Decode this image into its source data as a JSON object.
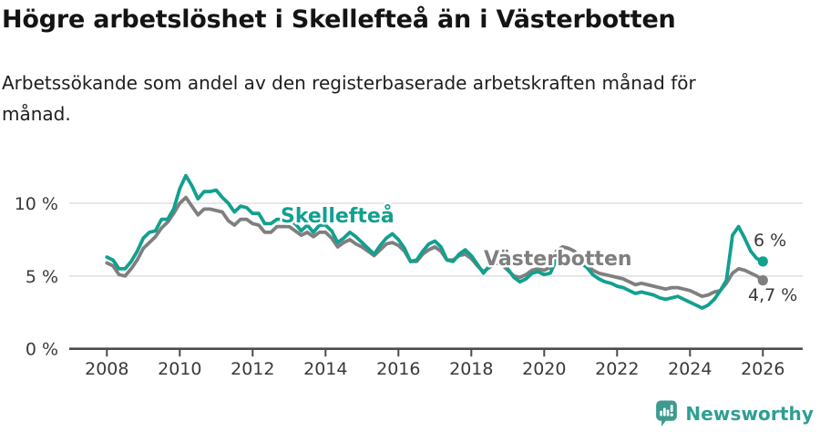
{
  "header": {
    "title": "Högre arbetslöshet i Skellefteå än i Västerbotten",
    "subtitle": "Arbetssökande som andel av den registerbaserade arbetskraften månad för månad."
  },
  "footer": {
    "brand": "Newsworthy",
    "logo_icon": "newsworthy-speech-bubble-bar-chart-icon"
  },
  "colors": {
    "grid": "#d9d9d9",
    "axis": "#4b4b4b",
    "tick_text": "#3a3a3a",
    "title_text": "#141414",
    "brand": "#2f9e93",
    "logo_fill": "#3d9a8e"
  },
  "chart_data": {
    "type": "line",
    "title": "Högre arbetslöshet i Skellefteå än i Västerbotten",
    "subtitle": "Arbetssökande som andel av den registerbaserade arbetskraften månad för månad.",
    "unit": "%",
    "x_start": 2008,
    "points_per_year": 6,
    "x_end": 2026,
    "xlim": [
      2006.97,
      2027.09
    ],
    "ylim": [
      0,
      12.5
    ],
    "grid": "horizontal-only",
    "x_ticks": [
      2008,
      2010,
      2012,
      2014,
      2016,
      2018,
      2020,
      2022,
      2024,
      2026
    ],
    "y_ticks": [
      {
        "value": 0,
        "label": "0 %"
      },
      {
        "value": 5,
        "label": "5 %"
      },
      {
        "value": 10,
        "label": "10 %"
      }
    ],
    "series": [
      {
        "name": "Skellefteå",
        "key": "skelleftea",
        "color": "#12a08f",
        "end_label": "6 %",
        "end_value": 6.0,
        "values": [
          6.3,
          6.1,
          5.5,
          5.5,
          6.0,
          6.7,
          7.6,
          8.0,
          8.1,
          8.9,
          8.9,
          9.6,
          11.0,
          11.9,
          11.2,
          10.3,
          10.8,
          10.8,
          10.9,
          10.4,
          10.0,
          9.4,
          9.8,
          9.7,
          9.3,
          9.3,
          8.6,
          8.6,
          8.9,
          8.9,
          8.8,
          8.6,
          8.1,
          8.5,
          8.0,
          8.5,
          8.5,
          8.1,
          7.3,
          7.6,
          8.0,
          7.7,
          7.3,
          6.9,
          6.5,
          7.1,
          7.6,
          7.9,
          7.5,
          6.9,
          6.0,
          6.1,
          6.7,
          7.2,
          7.4,
          7.0,
          6.1,
          6.0,
          6.5,
          6.8,
          6.4,
          5.8,
          5.2,
          5.7,
          6.4,
          6.1,
          5.5,
          4.9,
          4.6,
          4.8,
          5.2,
          5.3,
          5.1,
          5.2,
          6.1,
          6.5,
          6.3,
          6.1,
          5.9,
          5.6,
          5.1,
          4.8,
          4.6,
          4.5,
          4.3,
          4.2,
          4.0,
          3.8,
          3.9,
          3.8,
          3.7,
          3.5,
          3.4,
          3.5,
          3.6,
          3.4,
          3.2,
          3.0,
          2.8,
          3.0,
          3.4,
          4.0,
          4.7,
          7.8,
          8.4,
          7.6,
          6.7,
          6.2,
          6.0
        ]
      },
      {
        "name": "Västerbotten",
        "key": "vasterbotten",
        "color": "#7f7f7f",
        "end_label": "4,7 %",
        "end_value": 4.7,
        "values": [
          5.9,
          5.7,
          5.1,
          5.0,
          5.5,
          6.1,
          6.9,
          7.3,
          7.7,
          8.3,
          8.7,
          9.3,
          10.0,
          10.4,
          9.8,
          9.2,
          9.6,
          9.6,
          9.5,
          9.4,
          8.8,
          8.5,
          8.9,
          8.9,
          8.6,
          8.5,
          8.0,
          8.0,
          8.4,
          8.4,
          8.4,
          8.1,
          7.8,
          8.0,
          7.7,
          8.0,
          8.0,
          7.6,
          7.0,
          7.3,
          7.5,
          7.2,
          7.0,
          6.7,
          6.4,
          6.8,
          7.2,
          7.3,
          7.1,
          6.7,
          6.0,
          6.0,
          6.5,
          6.8,
          7.0,
          6.7,
          6.1,
          6.1,
          6.4,
          6.5,
          6.2,
          5.7,
          5.3,
          5.6,
          5.9,
          5.8,
          5.4,
          5.0,
          4.9,
          5.1,
          5.4,
          5.5,
          5.4,
          5.6,
          6.7,
          7.0,
          6.9,
          6.7,
          6.2,
          5.8,
          5.4,
          5.2,
          5.1,
          5.0,
          4.9,
          4.8,
          4.6,
          4.4,
          4.5,
          4.4,
          4.3,
          4.2,
          4.1,
          4.2,
          4.2,
          4.1,
          4.0,
          3.8,
          3.6,
          3.7,
          3.9,
          4.0,
          4.5,
          5.2,
          5.5,
          5.4,
          5.2,
          5.0,
          4.7
        ]
      }
    ],
    "legend_position": "inline-labels-on-lines"
  }
}
